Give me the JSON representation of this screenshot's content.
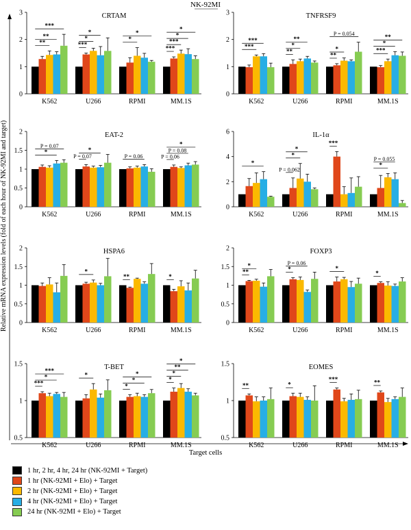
{
  "header": "NK-92MI",
  "y_axis_label": "Relative mRNA expression levels (fold of each hour of NK-92MI and target)",
  "x_axis_label": "Target cells",
  "series_colors": [
    "#000000",
    "#e0471a",
    "#fbb900",
    "#27aee5",
    "#86cc52"
  ],
  "legend": [
    "1 hr, 2 hr, 4 hr, 24 hr (NK-92MI + Target)",
    "1 hr (NK-92MI + Elo) + Target",
    "2 hr (NK-92MI + Elo) + Target",
    "4 hr (NK-92MI + Elo) + Target",
    "24 hr (NK-92MI + Elo) + Target"
  ],
  "chart_data": [
    {
      "type": "bar",
      "title": "CRTAM",
      "categories": [
        "K562",
        "U266",
        "RPMI",
        "MM.1S"
      ],
      "ylim": [
        0,
        3
      ],
      "yticks": [
        "0",
        "1",
        "2",
        "3"
      ],
      "series": [
        {
          "values": [
            1,
            1,
            1,
            1
          ]
        },
        {
          "values": [
            1.28,
            1.45,
            1.15,
            1.3
          ]
        },
        {
          "values": [
            1.43,
            1.58,
            1.4,
            1.48
          ]
        },
        {
          "values": [
            1.45,
            1.42,
            1.33,
            1.46
          ]
        },
        {
          "values": [
            1.77,
            1.58,
            1.18,
            1.28
          ]
        }
      ],
      "errors": [
        [
          0,
          0,
          0,
          0
        ],
        [
          0.1,
          0.05,
          0.18,
          0.06
        ],
        [
          0.15,
          0.1,
          0.3,
          0.13
        ],
        [
          0.1,
          0.32,
          0.16,
          0.2
        ],
        [
          0.42,
          0.48,
          0.05,
          0.12
        ]
      ],
      "annotations": [
        [
          "K562",
          0,
          2,
          "**"
        ],
        [
          "K562",
          0,
          3,
          "**"
        ],
        [
          "K562",
          0,
          4,
          "***"
        ],
        [
          "U266",
          0,
          1,
          "***"
        ],
        [
          "U266",
          0,
          2,
          "*"
        ],
        [
          "U266",
          0,
          3,
          "*"
        ],
        [
          "RPMI",
          0,
          2,
          "*"
        ],
        [
          "RPMI",
          0,
          4,
          "*"
        ],
        [
          "MM.1S",
          0,
          1,
          "***"
        ],
        [
          "MM.1S",
          0,
          2,
          "***"
        ],
        [
          "MM.1S",
          0,
          3,
          "*"
        ],
        [
          "MM.1S",
          0,
          4,
          "*"
        ]
      ]
    },
    {
      "type": "bar",
      "title": "TNFRSF9",
      "categories": [
        "K562",
        "U266",
        "RPMI",
        "MM.1S"
      ],
      "ylim": [
        0,
        3
      ],
      "yticks": [
        "0",
        "1",
        "2",
        "3"
      ],
      "series": [
        {
          "values": [
            1,
            1,
            1,
            1
          ]
        },
        {
          "values": [
            0.98,
            1.1,
            1.05,
            0.98
          ]
        },
        {
          "values": [
            1.38,
            1.2,
            1.22,
            1.2
          ]
        },
        {
          "values": [
            1.38,
            1.3,
            1.2,
            1.42
          ]
        },
        {
          "values": [
            0.98,
            1.15,
            1.55,
            1.4
          ]
        }
      ],
      "errors": [
        [
          0,
          0,
          0,
          0
        ],
        [
          0.08,
          0.15,
          0.06,
          0.06
        ],
        [
          0.05,
          0.08,
          0.1,
          0.08
        ],
        [
          0.1,
          0.08,
          0.05,
          0.13
        ],
        [
          0.15,
          0.06,
          0.35,
          0.14
        ]
      ],
      "annotations": [
        [
          "K562",
          0,
          2,
          "***"
        ],
        [
          "K562",
          0,
          3,
          "***"
        ],
        [
          "U266",
          0,
          1,
          "**"
        ],
        [
          "U266",
          0,
          2,
          "*"
        ],
        [
          "U266",
          0,
          3,
          "**"
        ],
        [
          "RPMI",
          0,
          1,
          "**"
        ],
        [
          "RPMI",
          0,
          2,
          "*"
        ],
        [
          "RPMI",
          0,
          4,
          "P = 0.054"
        ],
        [
          "MM.1S",
          0,
          2,
          "***"
        ],
        [
          "MM.1S",
          0,
          3,
          "*"
        ],
        [
          "MM.1S",
          0,
          4,
          "**"
        ]
      ]
    },
    {
      "type": "bar",
      "title": "EAT-2",
      "categories": [
        "K562",
        "U266",
        "RPMI",
        "MM.1S"
      ],
      "ylim": [
        0,
        2
      ],
      "yticks": [
        "0",
        "0.5",
        "1",
        "1.5",
        "2"
      ],
      "series": [
        {
          "values": [
            1,
            1,
            1,
            1
          ]
        },
        {
          "values": [
            1.06,
            1.07,
            1.02,
            1.06
          ]
        },
        {
          "values": [
            1.04,
            1.04,
            1.04,
            1.03
          ]
        },
        {
          "values": [
            1.15,
            1.05,
            1.07,
            1.1
          ]
        },
        {
          "values": [
            1.17,
            1.17,
            0.93,
            1.12
          ]
        }
      ],
      "errors": [
        [
          0,
          0,
          0,
          0
        ],
        [
          0.05,
          0.05,
          0.04,
          0.05
        ],
        [
          0.05,
          0.04,
          0.04,
          0.03
        ],
        [
          0.08,
          0.05,
          0.05,
          0.06
        ],
        [
          0.08,
          0.22,
          0.08,
          0.08
        ]
      ],
      "annotations": [
        [
          "K562",
          0,
          3,
          "*"
        ],
        [
          "K562",
          0,
          4,
          "P = 0.07"
        ],
        [
          "U266",
          0,
          1,
          "P = 0.07"
        ],
        [
          "U266",
          0,
          3,
          "*"
        ],
        [
          "RPMI",
          0,
          3,
          "P = 0.06"
        ],
        [
          "MM.1S",
          0,
          1,
          "P = 0.06"
        ],
        [
          "MM.1S",
          0,
          3,
          "P = 0.08"
        ],
        [
          "MM.1S",
          0,
          4,
          "*"
        ]
      ]
    },
    {
      "type": "bar",
      "title": "IL-1α",
      "categories": [
        "K562",
        "U266",
        "RPMI",
        "MM.1S"
      ],
      "ylim": [
        0,
        6
      ],
      "yticks": [
        "0",
        "2",
        "4",
        "6"
      ],
      "series": [
        {
          "values": [
            1,
            1,
            1,
            1
          ]
        },
        {
          "values": [
            1.65,
            1.5,
            4.0,
            1.5
          ]
        },
        {
          "values": [
            1.9,
            2.25,
            1.0,
            2.35
          ]
        },
        {
          "values": [
            2.2,
            2.0,
            1.1,
            2.2
          ]
        },
        {
          "values": [
            0.8,
            1.4,
            1.6,
            0.3
          ]
        }
      ],
      "errors": [
        [
          0,
          0,
          0,
          0
        ],
        [
          0.6,
          0.8,
          0.4,
          1.0
        ],
        [
          0.8,
          1.2,
          0.6,
          0.3
        ],
        [
          0.6,
          0.6,
          1.2,
          0.5
        ],
        [
          0.05,
          0.1,
          0.8,
          0.2
        ]
      ],
      "annotations": [
        [
          "K562",
          0,
          3,
          "*"
        ],
        [
          "U266",
          0,
          1,
          "P = 0.062"
        ],
        [
          "U266",
          0,
          2,
          "*"
        ],
        [
          "U266",
          0,
          3,
          "*"
        ],
        [
          "RPMI",
          0,
          1,
          "***"
        ],
        [
          "MM.1S",
          0,
          2,
          "*"
        ],
        [
          "MM.1S",
          0,
          3,
          "P = 0.055"
        ]
      ]
    },
    {
      "type": "bar",
      "title": "HSPA6",
      "categories": [
        "K562",
        "U266",
        "RPMI",
        "MM.1S"
      ],
      "ylim": [
        0,
        2
      ],
      "yticks": [
        "0",
        "0.5",
        "1",
        "1.5",
        "2"
      ],
      "series": [
        {
          "values": [
            1,
            1,
            1,
            1
          ]
        },
        {
          "values": [
            0.98,
            1.04,
            0.93,
            0.84
          ]
        },
        {
          "values": [
            1.02,
            1.07,
            1.17,
            0.97
          ]
        },
        {
          "values": [
            0.81,
            1.0,
            1.04,
            0.86
          ]
        },
        {
          "values": [
            1.25,
            1.24,
            1.3,
            1.18
          ]
        }
      ],
      "errors": [
        [
          0,
          0,
          0,
          0
        ],
        [
          0.08,
          0.04,
          0.02,
          0.05
        ],
        [
          0.18,
          0.07,
          0.02,
          0.15
        ],
        [
          0.25,
          0.05,
          0.05,
          0.2
        ],
        [
          0.3,
          0.48,
          0.28,
          0.22
        ]
      ],
      "annotations": [
        [
          "U266",
          0,
          2,
          "*"
        ],
        [
          "RPMI",
          0,
          1,
          "**"
        ],
        [
          "MM.1S",
          0,
          1,
          "*"
        ]
      ]
    },
    {
      "type": "bar",
      "title": "FOXP3",
      "categories": [
        "K562",
        "U266",
        "RPMI",
        "MM.1S"
      ],
      "ylim": [
        0,
        2
      ],
      "yticks": [
        "0",
        "0.5",
        "1",
        "1.5",
        "2"
      ],
      "series": [
        {
          "values": [
            1,
            1,
            1,
            1
          ]
        },
        {
          "values": [
            1.11,
            1.16,
            1.1,
            1.06
          ]
        },
        {
          "values": [
            1.12,
            1.14,
            1.16,
            0.99
          ]
        },
        {
          "values": [
            0.96,
            0.82,
            0.95,
            0.98
          ]
        },
        {
          "values": [
            1.24,
            1.17,
            1.04,
            1.1
          ]
        }
      ],
      "errors": [
        [
          0,
          0,
          0,
          0
        ],
        [
          0.02,
          0.04,
          0.12,
          0.03
        ],
        [
          0.04,
          0.08,
          0.05,
          0.1
        ],
        [
          0.1,
          0.05,
          0.15,
          0.05
        ],
        [
          0.18,
          0.18,
          0.15,
          0.1
        ]
      ],
      "annotations": [
        [
          "K562",
          0,
          1,
          "**"
        ],
        [
          "K562",
          0,
          2,
          "*"
        ],
        [
          "U266",
          0,
          1,
          "*"
        ],
        [
          "U266",
          0,
          3,
          "P = 0.06"
        ],
        [
          "RPMI",
          0,
          2,
          "*"
        ],
        [
          "MM.1S",
          0,
          1,
          "*"
        ]
      ]
    },
    {
      "type": "bar",
      "title": "T-BET",
      "categories": [
        "K562",
        "U266",
        "RPMI",
        "MM.1S"
      ],
      "ylim": [
        0.5,
        1.5
      ],
      "yticks": [
        "0.5",
        "1",
        "1.5"
      ],
      "series": [
        {
          "values": [
            1,
            1,
            1,
            1
          ]
        },
        {
          "values": [
            1.1,
            1.03,
            1.05,
            1.12
          ]
        },
        {
          "values": [
            1.06,
            1.15,
            1.06,
            1.17
          ]
        },
        {
          "values": [
            1.09,
            1.04,
            1.05,
            1.12
          ]
        },
        {
          "values": [
            1.05,
            1.14,
            1.1,
            1.07
          ]
        }
      ],
      "errors": [
        [
          0,
          0,
          0,
          0
        ],
        [
          0.02,
          0.05,
          0.03,
          0.05
        ],
        [
          0.04,
          0.08,
          0.04,
          0.06
        ],
        [
          0.02,
          0.05,
          0.03,
          0.04
        ],
        [
          0.06,
          0.14,
          0.05,
          0.03
        ]
      ],
      "annotations": [
        [
          "K562",
          0,
          1,
          "***"
        ],
        [
          "K562",
          0,
          3,
          "*"
        ],
        [
          "K562",
          0,
          4,
          "***"
        ],
        [
          "U266",
          0,
          2,
          "*"
        ],
        [
          "RPMI",
          0,
          1,
          "*"
        ],
        [
          "RPMI",
          0,
          3,
          "*"
        ],
        [
          "RPMI",
          0,
          4,
          "*"
        ],
        [
          "MM.1S",
          0,
          1,
          "*"
        ],
        [
          "MM.1S",
          0,
          2,
          "*"
        ],
        [
          "MM.1S",
          0,
          3,
          "**"
        ],
        [
          "MM.1S",
          0,
          4,
          "*"
        ]
      ]
    },
    {
      "type": "bar",
      "title": "EOMES",
      "categories": [
        "K562",
        "U266",
        "RPMI",
        "MM.1S"
      ],
      "ylim": [
        0.5,
        1.5
      ],
      "yticks": [
        "0.5",
        "1",
        "1.5"
      ],
      "series": [
        {
          "values": [
            1,
            1,
            1,
            1
          ]
        },
        {
          "values": [
            1.07,
            1.06,
            1.15,
            1.11
          ]
        },
        {
          "values": [
            0.99,
            1.05,
            0.99,
            0.98
          ]
        },
        {
          "values": [
            1.0,
            1.01,
            1.01,
            1.02
          ]
        },
        {
          "values": [
            1.02,
            1.0,
            1.02,
            1.05
          ]
        }
      ],
      "errors": [
        [
          0,
          0,
          0,
          0
        ],
        [
          0.02,
          0.04,
          0.02,
          0.02
        ],
        [
          0.06,
          0.05,
          0.04,
          0.05
        ],
        [
          0.05,
          0.04,
          0.08,
          0.03
        ],
        [
          0.15,
          0.2,
          0.12,
          0.12
        ]
      ],
      "annotations": [
        [
          "K562",
          0,
          1,
          "**"
        ],
        [
          "U266",
          0,
          1,
          "*"
        ],
        [
          "RPMI",
          0,
          1,
          "***"
        ],
        [
          "MM.1S",
          0,
          1,
          "**"
        ]
      ]
    }
  ]
}
